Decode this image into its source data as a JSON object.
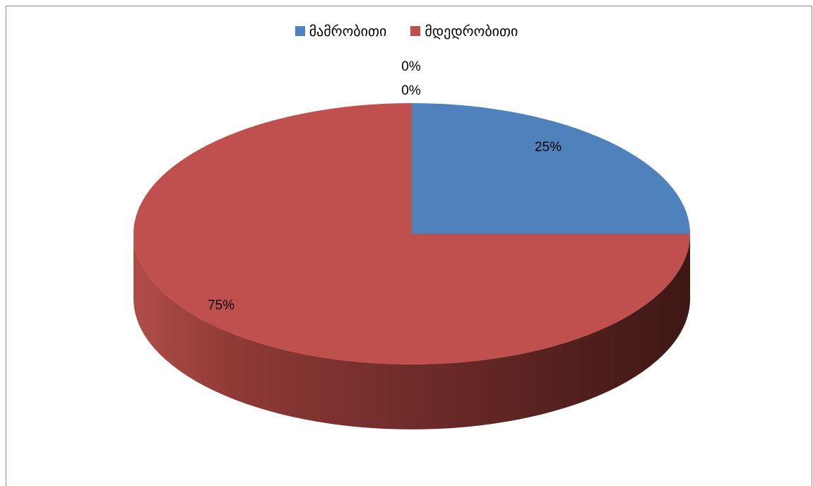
{
  "chart_data": {
    "type": "pie",
    "style": "3d",
    "title": "",
    "legend_position": "top",
    "series": [
      {
        "categories": [
          "მამრობითი",
          "მდედრობითი"
        ],
        "values": [
          25,
          75
        ],
        "labels": [
          "25%",
          "75%"
        ],
        "colors": [
          "#4f81bd",
          "#c0504d"
        ]
      }
    ],
    "extra_labels": [
      "0%",
      "0%"
    ]
  }
}
